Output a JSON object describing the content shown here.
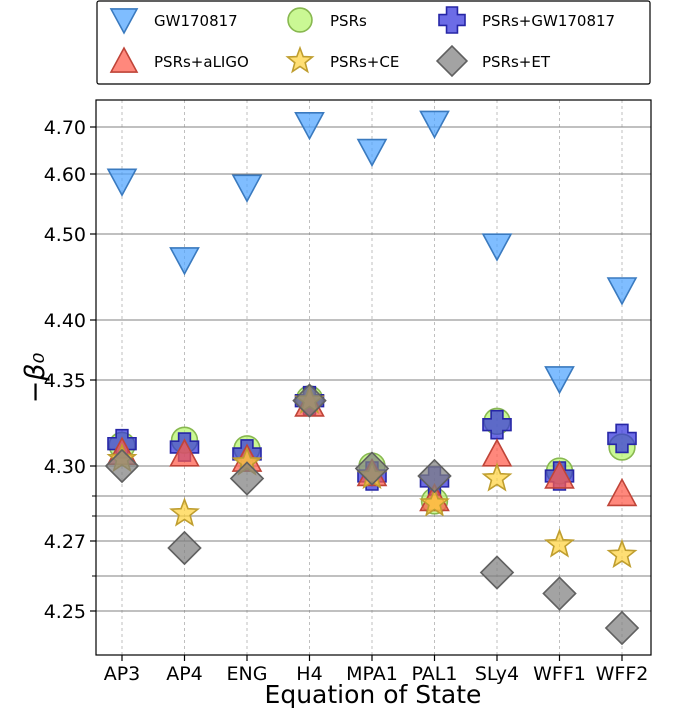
{
  "chart_data": {
    "type": "scatter",
    "title": "",
    "xlabel": "Equation of State",
    "ylabel": "−β₀",
    "scale": "non-uniform (log-like)",
    "grid": {
      "horizontal": true,
      "vertical": true
    },
    "legend_position": "top",
    "categories": [
      "AP3",
      "AP4",
      "ENG",
      "H4",
      "MPA1",
      "PAL1",
      "SLy4",
      "WFF1",
      "WFF2"
    ],
    "ytick_labels": [
      "4.70",
      "4.60",
      "4.50",
      "4.40",
      "4.35",
      "4.30",
      "4.27",
      "4.25"
    ],
    "yticks": [
      4.7,
      4.6,
      4.5,
      4.4,
      4.35,
      4.3,
      4.27,
      4.25
    ],
    "ytick_positions_ref": [
      4.7,
      4.6,
      4.5,
      4.4,
      4.35,
      4.3,
      4.27,
      4.25
    ],
    "series": [
      {
        "name": "GW170817",
        "marker": "triangle-down",
        "color": "#4da3ff",
        "values": [
          4.588,
          4.47,
          4.578,
          4.705,
          4.648,
          4.708,
          4.486,
          4.351,
          4.435
        ]
      },
      {
        "name": "PSRs",
        "marker": "circle",
        "color": "#b5f56b",
        "values": [
          4.312,
          4.315,
          4.31,
          4.339,
          4.3,
          4.286,
          4.326,
          4.298,
          4.311
        ]
      },
      {
        "name": "PSRs+GW170817",
        "marker": "plus",
        "color": "#3333dd",
        "values": [
          4.313,
          4.311,
          4.307,
          4.338,
          4.296,
          4.294,
          4.324,
          4.296,
          4.316
        ]
      },
      {
        "name": "PSRs+aLIGO",
        "marker": "triangle-up",
        "color": "#ff5a4a",
        "values": [
          4.308,
          4.307,
          4.304,
          4.336,
          4.297,
          4.287,
          4.307,
          4.296,
          4.289
        ]
      },
      {
        "name": "PSRs+CE",
        "marker": "star",
        "color": "#ffd23f",
        "values": [
          4.304,
          4.281,
          4.302,
          4.338,
          4.296,
          4.285,
          4.295,
          4.269,
          4.266
        ]
      },
      {
        "name": "PSRs+ET",
        "marker": "diamond",
        "color": "#808080",
        "values": [
          4.3,
          4.268,
          4.295,
          4.338,
          4.299,
          4.296,
          4.261,
          4.255,
          4.245
        ]
      }
    ]
  }
}
